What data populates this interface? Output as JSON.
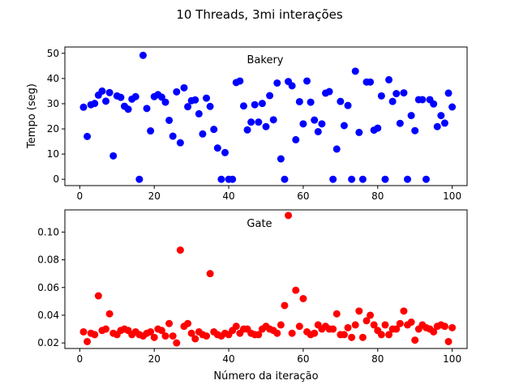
{
  "figure": {
    "title": "10 Threads, 3mi interações"
  },
  "chart_data": [
    {
      "type": "scatter",
      "title": "Bakery",
      "xlabel": "",
      "ylabel": "Tempo (seg)",
      "xlim": [
        -4,
        104
      ],
      "ylim": [
        -2.5,
        52.5
      ],
      "xticks": [
        0,
        20,
        40,
        60,
        80,
        100
      ],
      "yticks": [
        0,
        10,
        20,
        30,
        40,
        50
      ],
      "tick_labels_y": [
        "0",
        "10",
        "20",
        "30",
        "40",
        "50"
      ],
      "grid": false,
      "color": "#0000ff",
      "x": [
        1,
        2,
        3,
        4,
        5,
        6,
        7,
        8,
        9,
        10,
        11,
        12,
        13,
        14,
        15,
        16,
        17,
        18,
        19,
        20,
        21,
        22,
        23,
        24,
        25,
        26,
        27,
        28,
        29,
        30,
        31,
        32,
        33,
        34,
        35,
        36,
        37,
        38,
        39,
        40,
        41,
        42,
        43,
        44,
        45,
        46,
        47,
        48,
        49,
        50,
        51,
        52,
        53,
        54,
        55,
        56,
        57,
        58,
        59,
        60,
        61,
        62,
        63,
        64,
        65,
        66,
        67,
        68,
        69,
        70,
        71,
        72,
        73,
        74,
        75,
        76,
        77,
        78,
        79,
        80,
        81,
        82,
        83,
        84,
        85,
        86,
        87,
        88,
        89,
        90,
        91,
        92,
        93,
        94,
        95,
        96,
        97,
        98,
        99,
        100
      ],
      "y": [
        28.6,
        17,
        29.6,
        30.1,
        33.4,
        35,
        31,
        34.4,
        9.3,
        33.1,
        32.5,
        29,
        27.8,
        31.8,
        32.8,
        0,
        49.2,
        28.1,
        19.2,
        32.8,
        33.6,
        32.6,
        30.6,
        23.4,
        17.1,
        34.7,
        14.5,
        36.3,
        28.8,
        31.2,
        31.5,
        26,
        18,
        32.2,
        28.9,
        19.8,
        12.4,
        0,
        10.6,
        0,
        0,
        38.4,
        39,
        29.1,
        19.6,
        22.7,
        29.6,
        22.7,
        30.1,
        20.9,
        33.2,
        23.6,
        38.2,
        8.1,
        0,
        38.8,
        37.1,
        15.7,
        30.8,
        22,
        39,
        30.6,
        23.5,
        18.9,
        22,
        34.2,
        34.8,
        0,
        12,
        30.9,
        21.3,
        29.3,
        0,
        42.9,
        18.6,
        0,
        38.6,
        38.6,
        19.5,
        20.3,
        33.1,
        0,
        39.5,
        30.9,
        34,
        22.2,
        34.3,
        0,
        25.3,
        19.3,
        31.6,
        31.6,
        0,
        31.6,
        29.9,
        20.9,
        25.3,
        22.3,
        34.2,
        28.7
      ]
    },
    {
      "type": "scatter",
      "title": "Gate",
      "xlabel": "Número da iteração",
      "ylabel": "",
      "xlim": [
        -4,
        104
      ],
      "ylim": [
        0.016,
        0.116
      ],
      "xticks": [
        0,
        20,
        40,
        60,
        80,
        100
      ],
      "yticks": [
        0.02,
        0.04,
        0.06,
        0.08,
        0.1
      ],
      "tick_labels_y": [
        "0.02",
        "0.04",
        "0.06",
        "0.08",
        "0.10"
      ],
      "grid": false,
      "color": "#ff0000",
      "x": [
        1,
        2,
        3,
        4,
        5,
        6,
        7,
        8,
        9,
        10,
        11,
        12,
        13,
        14,
        15,
        16,
        17,
        18,
        19,
        20,
        21,
        22,
        23,
        24,
        25,
        26,
        27,
        28,
        29,
        30,
        31,
        32,
        33,
        34,
        35,
        36,
        37,
        38,
        39,
        40,
        41,
        42,
        43,
        44,
        45,
        46,
        47,
        48,
        49,
        50,
        51,
        52,
        53,
        54,
        55,
        56,
        57,
        58,
        59,
        60,
        61,
        62,
        63,
        64,
        65,
        66,
        67,
        68,
        69,
        70,
        71,
        72,
        73,
        74,
        75,
        76,
        77,
        78,
        79,
        80,
        81,
        82,
        83,
        84,
        85,
        86,
        87,
        88,
        89,
        90,
        91,
        92,
        93,
        94,
        95,
        96,
        97,
        98,
        99,
        100
      ],
      "y": [
        0.028,
        0.021,
        0.027,
        0.026,
        0.054,
        0.029,
        0.03,
        0.041,
        0.027,
        0.026,
        0.029,
        0.03,
        0.029,
        0.026,
        0.028,
        0.026,
        0.025,
        0.027,
        0.028,
        0.024,
        0.03,
        0.029,
        0.025,
        0.034,
        0.025,
        0.02,
        0.087,
        0.032,
        0.034,
        0.027,
        0.023,
        0.028,
        0.026,
        0.025,
        0.07,
        0.028,
        0.026,
        0.025,
        0.027,
        0.026,
        0.029,
        0.032,
        0.027,
        0.03,
        0.03,
        0.027,
        0.026,
        0.026,
        0.03,
        0.032,
        0.03,
        0.029,
        0.027,
        0.033,
        0.047,
        0.112,
        0.027,
        0.058,
        0.032,
        0.052,
        0.028,
        0.026,
        0.027,
        0.033,
        0.03,
        0.032,
        0.03,
        0.03,
        0.041,
        0.026,
        0.026,
        0.031,
        0.024,
        0.033,
        0.043,
        0.024,
        0.036,
        0.04,
        0.033,
        0.029,
        0.026,
        0.033,
        0.026,
        0.03,
        0.03,
        0.034,
        0.043,
        0.033,
        0.035,
        0.022,
        0.03,
        0.033,
        0.031,
        0.03,
        0.028,
        0.032,
        0.033,
        0.032,
        0.021,
        0.031
      ]
    }
  ]
}
